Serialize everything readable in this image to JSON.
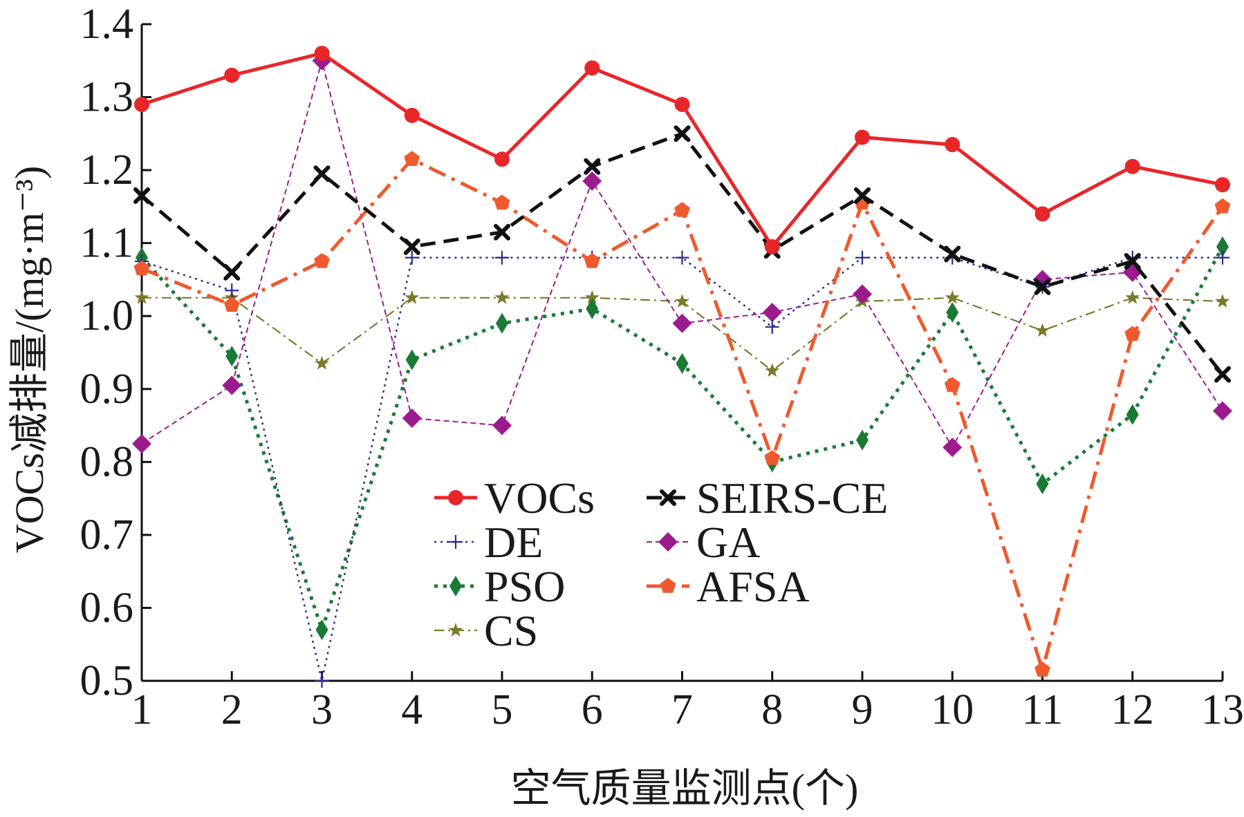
{
  "chart_data": {
    "type": "line",
    "title": "",
    "xlabel": "空气质量监测点(个)",
    "ylabel": "VOCs减排量/(mg·m⁻³)",
    "x": [
      1,
      2,
      3,
      4,
      5,
      6,
      7,
      8,
      9,
      10,
      11,
      12,
      13
    ],
    "x_tick_labels": [
      "1",
      "2",
      "3",
      "4",
      "5",
      "6",
      "7",
      "8",
      "9",
      "10",
      "11",
      "12",
      "13"
    ],
    "y_tick_labels": [
      "0.5",
      "0.6",
      "0.7",
      "0.8",
      "0.9",
      "1.0",
      "1.1",
      "1.2",
      "1.3",
      "1.4"
    ],
    "xlim": [
      1,
      13
    ],
    "ylim": [
      0.5,
      1.4
    ],
    "grid": false,
    "legend_position": "bottom-center",
    "series": [
      {
        "name": "VOCs",
        "color": "#e8262a",
        "dash": "solid",
        "marker": "circle",
        "values": [
          1.29,
          1.33,
          1.36,
          1.275,
          1.215,
          1.34,
          1.29,
          1.095,
          1.245,
          1.235,
          1.14,
          1.205,
          1.18
        ]
      },
      {
        "name": "SEIRS-CE",
        "color": "#111111",
        "dash": "dashed",
        "marker": "x",
        "values": [
          1.165,
          1.06,
          1.195,
          1.095,
          1.115,
          1.205,
          1.25,
          1.09,
          1.165,
          1.085,
          1.04,
          1.075,
          0.92
        ]
      },
      {
        "name": "DE",
        "color": "#2b2b8c",
        "dash": "dotted",
        "marker": "plus",
        "values": [
          1.075,
          1.035,
          0.5,
          1.08,
          1.08,
          1.08,
          1.08,
          0.985,
          1.08,
          1.08,
          1.04,
          1.08,
          1.08
        ]
      },
      {
        "name": "GA",
        "color": "#9b1b8e",
        "dash": "thin-dashed",
        "marker": "diamond",
        "values": [
          0.825,
          0.905,
          1.35,
          0.86,
          0.85,
          1.185,
          0.99,
          1.005,
          1.03,
          0.82,
          1.05,
          1.06,
          0.87
        ]
      },
      {
        "name": "PSO",
        "color": "#1a7a35",
        "dash": "dotted-thick",
        "marker": "thin-diamond",
        "values": [
          1.08,
          0.945,
          0.57,
          0.94,
          0.99,
          1.01,
          0.935,
          0.8,
          0.83,
          1.005,
          0.77,
          0.865,
          1.095
        ]
      },
      {
        "name": "AFSA",
        "color": "#ee5a2e",
        "dash": "dash-dot",
        "marker": "pentagon",
        "values": [
          1.065,
          1.015,
          1.075,
          1.215,
          1.155,
          1.075,
          1.145,
          0.805,
          1.155,
          0.905,
          0.515,
          0.975,
          1.15
        ]
      },
      {
        "name": "CS",
        "color": "#7a7a2a",
        "dash": "dash-dot-thin",
        "marker": "star",
        "values": [
          1.025,
          1.025,
          0.935,
          1.025,
          1.025,
          1.025,
          1.02,
          0.925,
          1.02,
          1.025,
          0.98,
          1.025,
          1.02
        ]
      }
    ]
  }
}
